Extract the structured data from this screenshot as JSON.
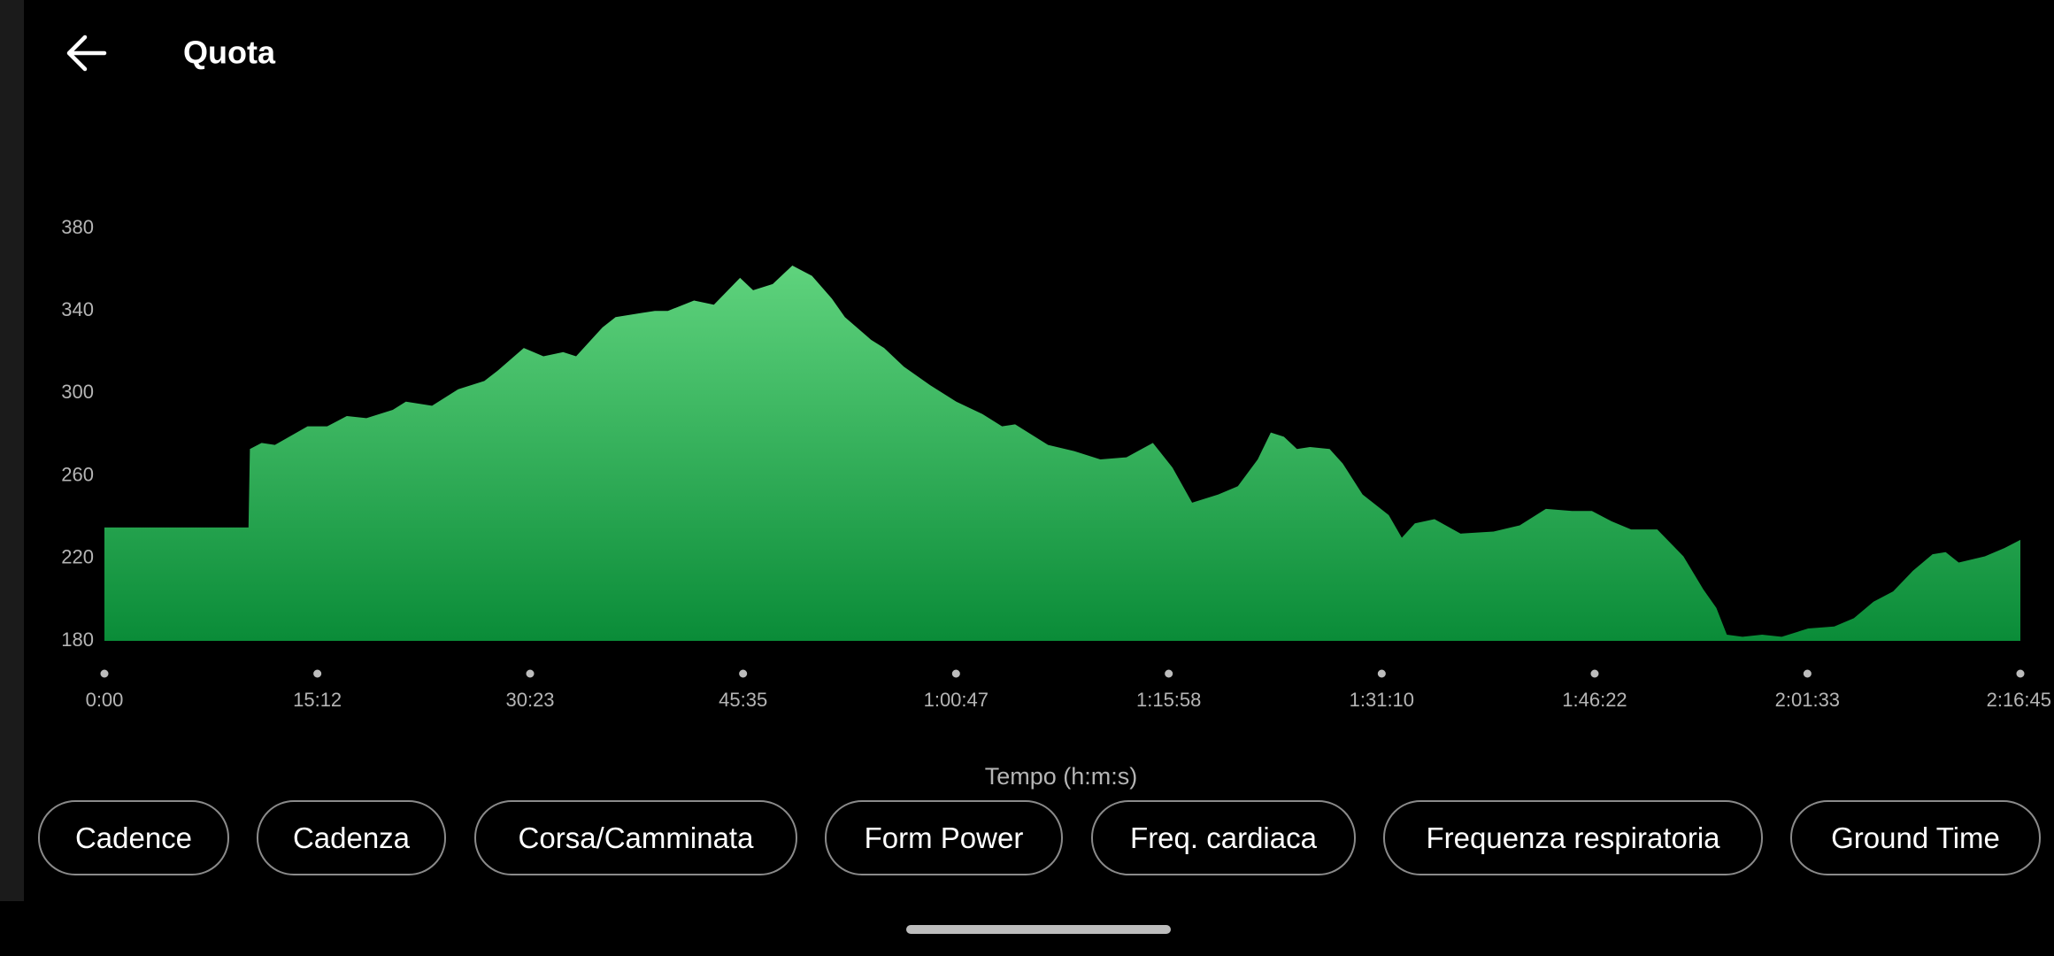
{
  "header": {
    "title": "Quota"
  },
  "chart_data": {
    "type": "area",
    "xlabel": "Tempo (h:m:s)",
    "x": [
      0,
      617,
      623,
      673,
      730,
      870,
      954,
      1038,
      1122,
      1235,
      1291,
      1403,
      1515,
      1627,
      1684,
      1796,
      1880,
      1964,
      2020,
      2133,
      2189,
      2301,
      2357,
      2413,
      2525,
      2610,
      2722,
      2778,
      2862,
      2946,
      3030,
      3115,
      3171,
      3283,
      3339,
      3423,
      3536,
      3648,
      3760,
      3844,
      3900,
      4041,
      4153,
      4265,
      4377,
      4490,
      4574,
      4658,
      4770,
      4854,
      4939,
      4995,
      5051,
      5107,
      5163,
      5247,
      5303,
      5388,
      5500,
      5556,
      5612,
      5696,
      5808,
      5949,
      6061,
      6173,
      6285,
      6370,
      6454,
      6538,
      6650,
      6762,
      6847,
      6903,
      6948,
      7015,
      7099,
      7183,
      7296,
      7408,
      7492,
      7576,
      7660,
      7745,
      7829,
      7885,
      7941,
      8053,
      8137,
      8205
    ],
    "values": [
      235,
      235,
      273,
      276,
      275,
      284,
      284,
      289,
      288,
      292,
      296,
      294,
      302,
      306,
      311,
      322,
      318,
      320,
      318,
      332,
      337,
      339,
      340,
      340,
      345,
      343,
      356,
      350,
      353,
      362,
      357,
      346,
      337,
      326,
      322,
      313,
      304,
      296,
      290,
      284,
      285,
      275,
      272,
      268,
      269,
      276,
      264,
      247,
      251,
      255,
      268,
      281,
      279,
      273,
      274,
      273,
      266,
      251,
      241,
      230,
      237,
      239,
      232,
      233,
      236,
      244,
      243,
      243,
      238,
      234,
      234,
      221,
      205,
      196,
      183,
      182,
      183,
      182,
      186,
      187,
      191,
      199,
      204,
      214,
      222,
      223,
      218,
      221,
      225,
      229
    ],
    "colors": [
      "#5fd37d",
      "#0a8c38"
    ],
    "xlim": [
      0,
      8205
    ],
    "ylim": [
      180,
      380
    ],
    "yticks": [
      180,
      220,
      260,
      300,
      340,
      380
    ],
    "xticks": [
      {
        "value": 0,
        "label": "0:00"
      },
      {
        "value": 912,
        "label": "15:12"
      },
      {
        "value": 1823,
        "label": "30:23"
      },
      {
        "value": 2735,
        "label": "45:35"
      },
      {
        "value": 3647,
        "label": "1:00:47"
      },
      {
        "value": 4558,
        "label": "1:15:58"
      },
      {
        "value": 5470,
        "label": "1:31:10"
      },
      {
        "value": 6382,
        "label": "1:46:22"
      },
      {
        "value": 7293,
        "label": "2:01:33"
      },
      {
        "value": 8205,
        "label": "2:16:45"
      }
    ]
  },
  "chips": [
    "Cadence",
    "Cadenza",
    "Corsa/Camminata",
    "Form Power",
    "Freq. cardiaca",
    "Frequenza respiratoria",
    "Ground Time"
  ]
}
